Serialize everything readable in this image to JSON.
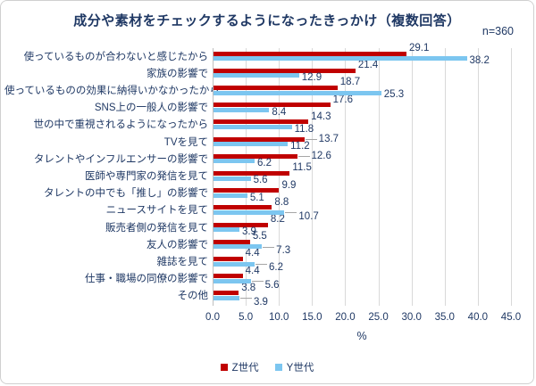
{
  "chart_data": {
    "type": "bar",
    "orientation": "horizontal",
    "title": "成分や素材をチェックするようになったきっかけ（複数回答）",
    "n_label": "n=360",
    "categories": [
      "使っているものが合わないと感じたから",
      "家族の影響で",
      "使っているものの効果に納得いかなかったから",
      "SNS上の一般人の影響で",
      "世の中で重視されるようになったから",
      "TVを見て",
      "タレントやインフルエンサーの影響で",
      "医師や専門家の発信を見て",
      "タレントの中でも「推し」の影響で",
      "ニュースサイトを見て",
      "販売者側の発信を見て",
      "友人の影響で",
      "雑誌を見て",
      "仕事・職場の同僚の影響で",
      "その他"
    ],
    "series": [
      {
        "name": "Z世代",
        "color": "#C00000",
        "values": [
          29.1,
          21.4,
          18.7,
          17.6,
          14.3,
          13.7,
          12.6,
          11.5,
          9.9,
          8.8,
          8.2,
          5.5,
          4.4,
          4.4,
          3.8
        ]
      },
      {
        "name": "Y世代",
        "color": "#7CC6F0",
        "values": [
          38.2,
          12.9,
          25.3,
          8.4,
          11.8,
          11.2,
          6.2,
          5.6,
          5.1,
          10.7,
          3.9,
          7.3,
          6.2,
          5.6,
          3.9
        ]
      }
    ],
    "xlabel": "%",
    "xlim": [
      0,
      45
    ],
    "xticks": [
      "0.0",
      "5.0",
      "10.0",
      "15.0",
      "20.0",
      "25.0",
      "30.0",
      "35.0",
      "40.0",
      "45.0"
    ],
    "grid": true,
    "legend_position": "bottom",
    "text_color": "#1F3864",
    "gridline_color": "#d9d9d9",
    "layout_hints": {
      "leader_line_rows_z": [
        5,
        6
      ],
      "leader_line_rows_y": [
        9,
        11,
        12,
        13,
        14
      ]
    }
  }
}
